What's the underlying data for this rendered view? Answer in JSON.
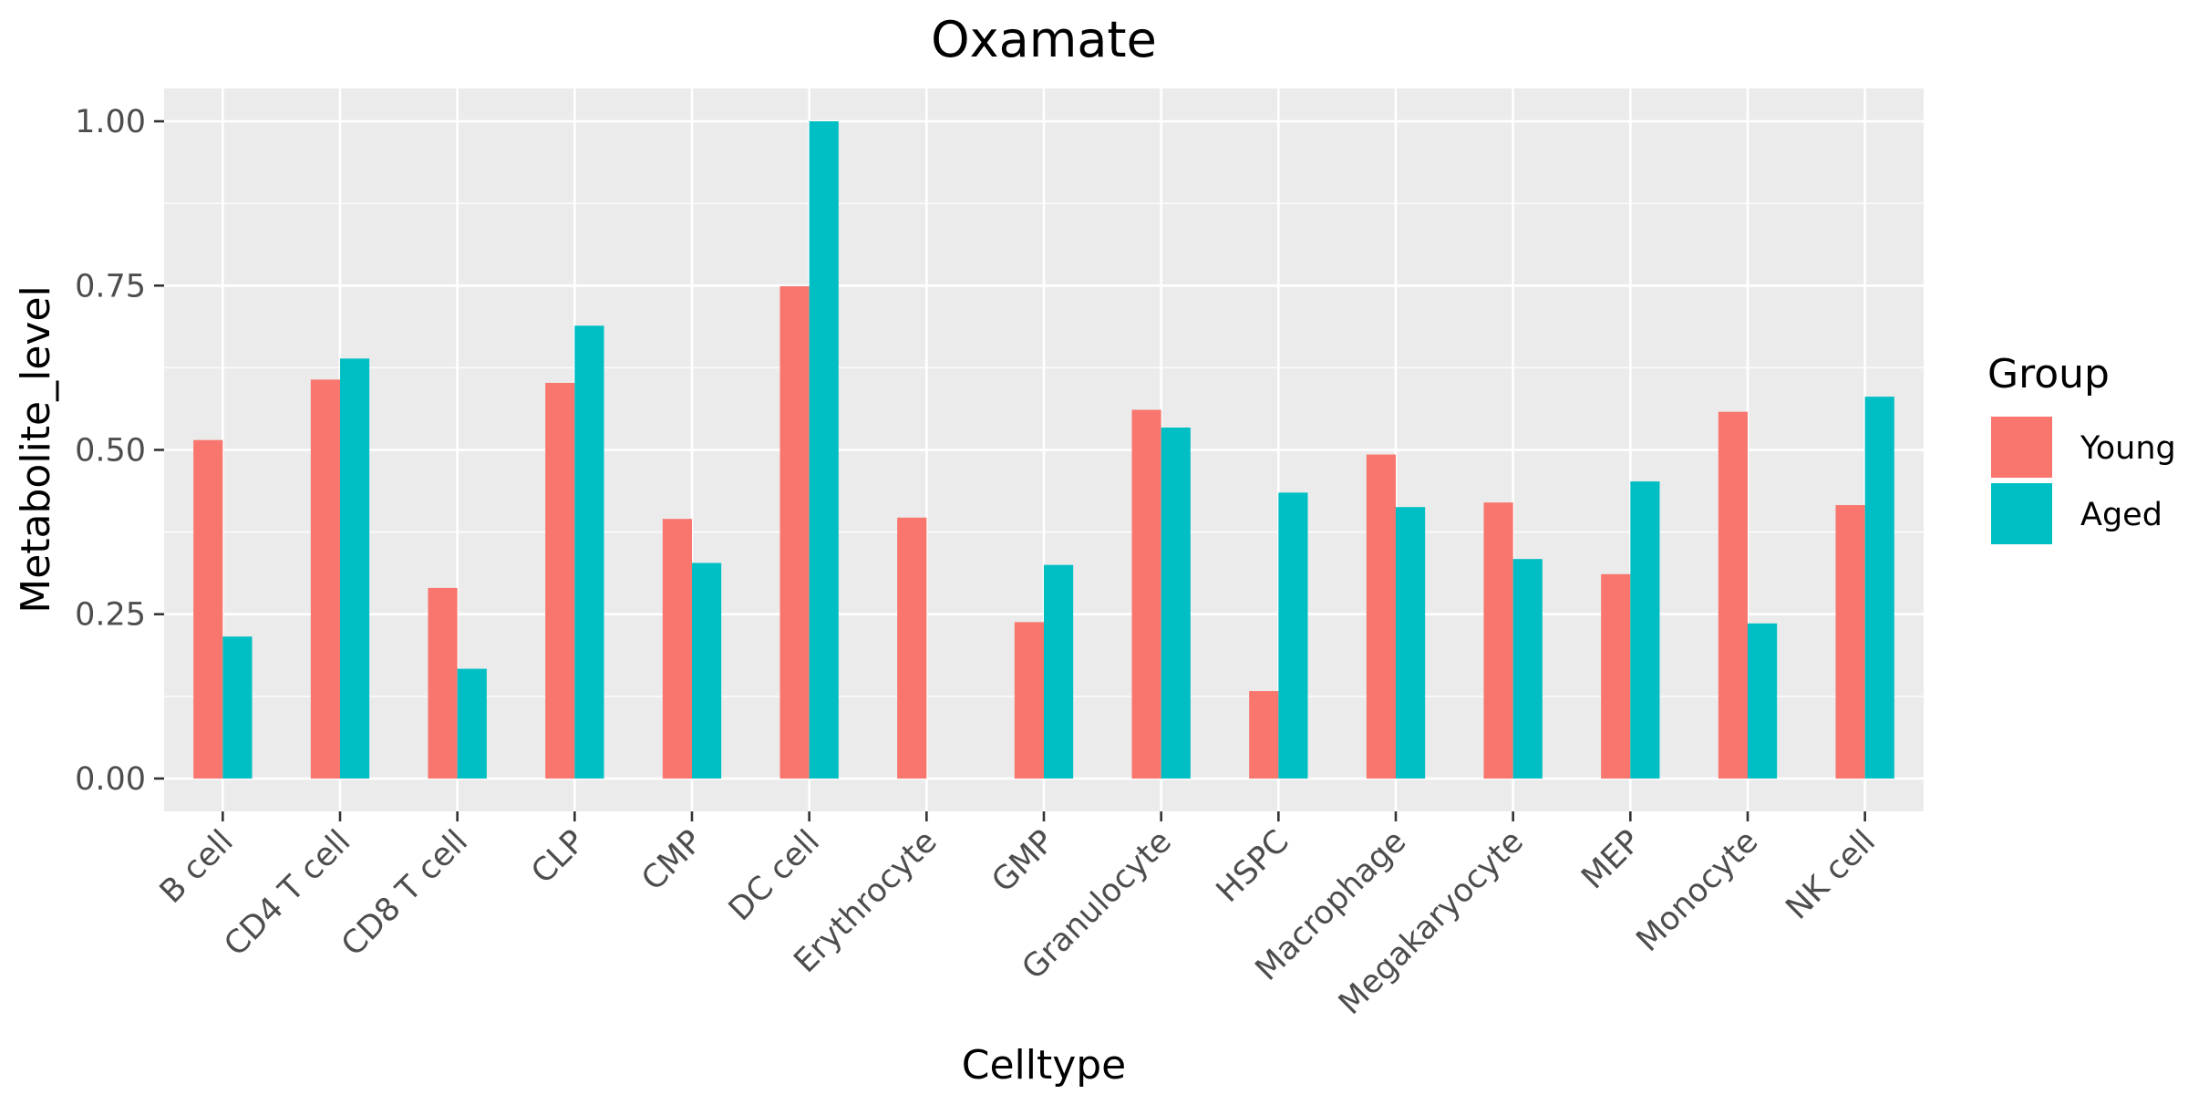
{
  "chart_data": {
    "type": "bar",
    "title": "Oxamate",
    "xlabel": "Celltype",
    "ylabel": "Metabolite_level",
    "ylim": [
      -0.05,
      1.05
    ],
    "yticks": [
      0,
      0.25,
      0.5,
      0.75,
      1.0
    ],
    "ytick_labels": [
      "0.00",
      "0.25",
      "0.50",
      "0.75",
      "1.00"
    ],
    "grid": true,
    "legend_position": "right",
    "legend_title": "Group",
    "categories": [
      "B cell",
      "CD4 T cell",
      "CD8 T cell",
      "CLP",
      "CMP",
      "DC cell",
      "Erythrocyte",
      "GMP",
      "Granulocyte",
      "HSPC",
      "Macrophage",
      "Megakaryocyte",
      "MEP",
      "Monocyte",
      "NK cell"
    ],
    "series": [
      {
        "name": "Young",
        "color": "#F8766D",
        "values": [
          0.515,
          0.607,
          0.29,
          0.602,
          0.395,
          0.749,
          0.397,
          0.238,
          0.561,
          0.133,
          0.493,
          0.42,
          0.311,
          0.558,
          0.416
        ]
      },
      {
        "name": "Aged",
        "color": "#00BFC4",
        "values": [
          0.216,
          0.639,
          0.167,
          0.689,
          0.328,
          1.0,
          0.0,
          0.325,
          0.534,
          0.435,
          0.413,
          0.334,
          0.452,
          0.236,
          0.581
        ]
      }
    ]
  }
}
